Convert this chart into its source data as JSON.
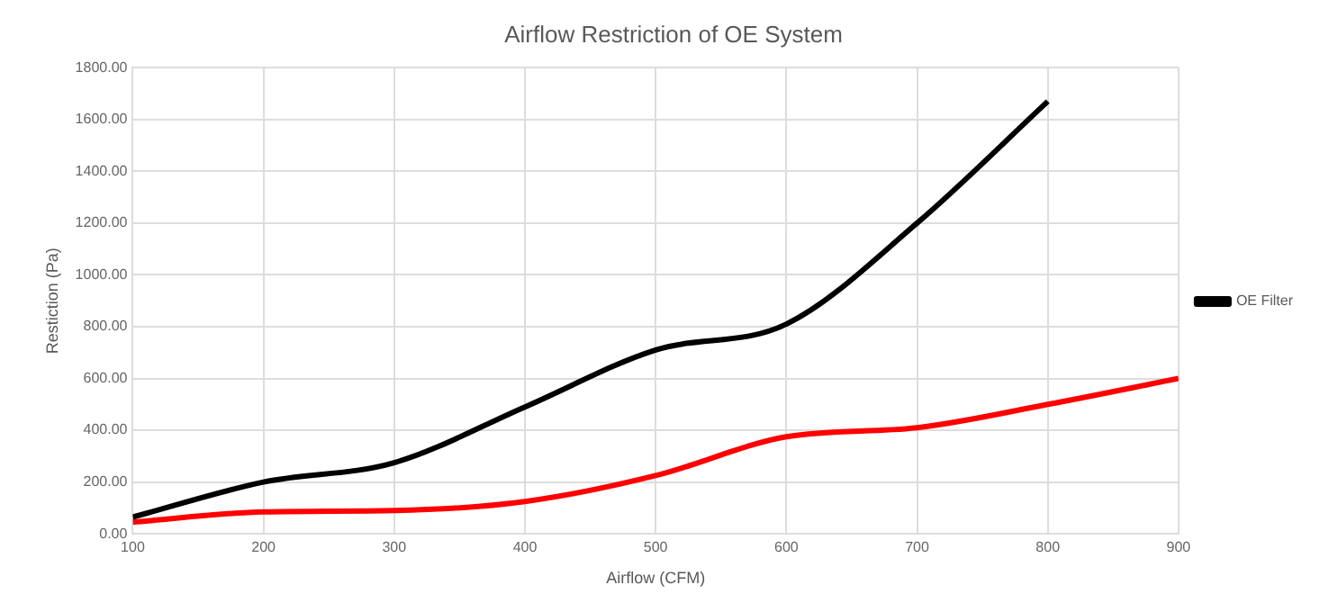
{
  "chart_data": {
    "type": "line",
    "title": "Airflow Restriction of OE System",
    "xlabel": "Airflow (CFM)",
    "ylabel": "Restiction (Pa)",
    "x": [
      100,
      200,
      300,
      400,
      500,
      600,
      700,
      800,
      900
    ],
    "series": [
      {
        "name": "OE Filter",
        "color": "#000000",
        "values": [
          65,
          200,
          275,
          490,
          710,
          810,
          1200,
          1670,
          null
        ]
      },
      {
        "color": "#ff0000",
        "values": [
          45,
          85,
          90,
          125,
          225,
          375,
          410,
          500,
          600
        ]
      }
    ],
    "xlim": [
      100,
      900
    ],
    "xticks": [
      100,
      200,
      300,
      400,
      500,
      600,
      700,
      800,
      900
    ],
    "ylim": [
      0,
      1800
    ],
    "yticks": [
      {
        "value": 0,
        "label": "0.00"
      },
      {
        "value": 200,
        "label": "200.00"
      },
      {
        "value": 400,
        "label": "400.00"
      },
      {
        "value": 600,
        "label": "600.00"
      },
      {
        "value": 800,
        "label": "800.00"
      },
      {
        "value": 1000,
        "label": "1000.00"
      },
      {
        "value": 1200,
        "label": "1200.00"
      },
      {
        "value": 1400,
        "label": "1400.00"
      },
      {
        "value": 1600,
        "label": "1600.00"
      },
      {
        "value": 1800,
        "label": "1800.00"
      }
    ],
    "grid": true,
    "legend": "right",
    "marker": "none",
    "line_style": "solid"
  }
}
